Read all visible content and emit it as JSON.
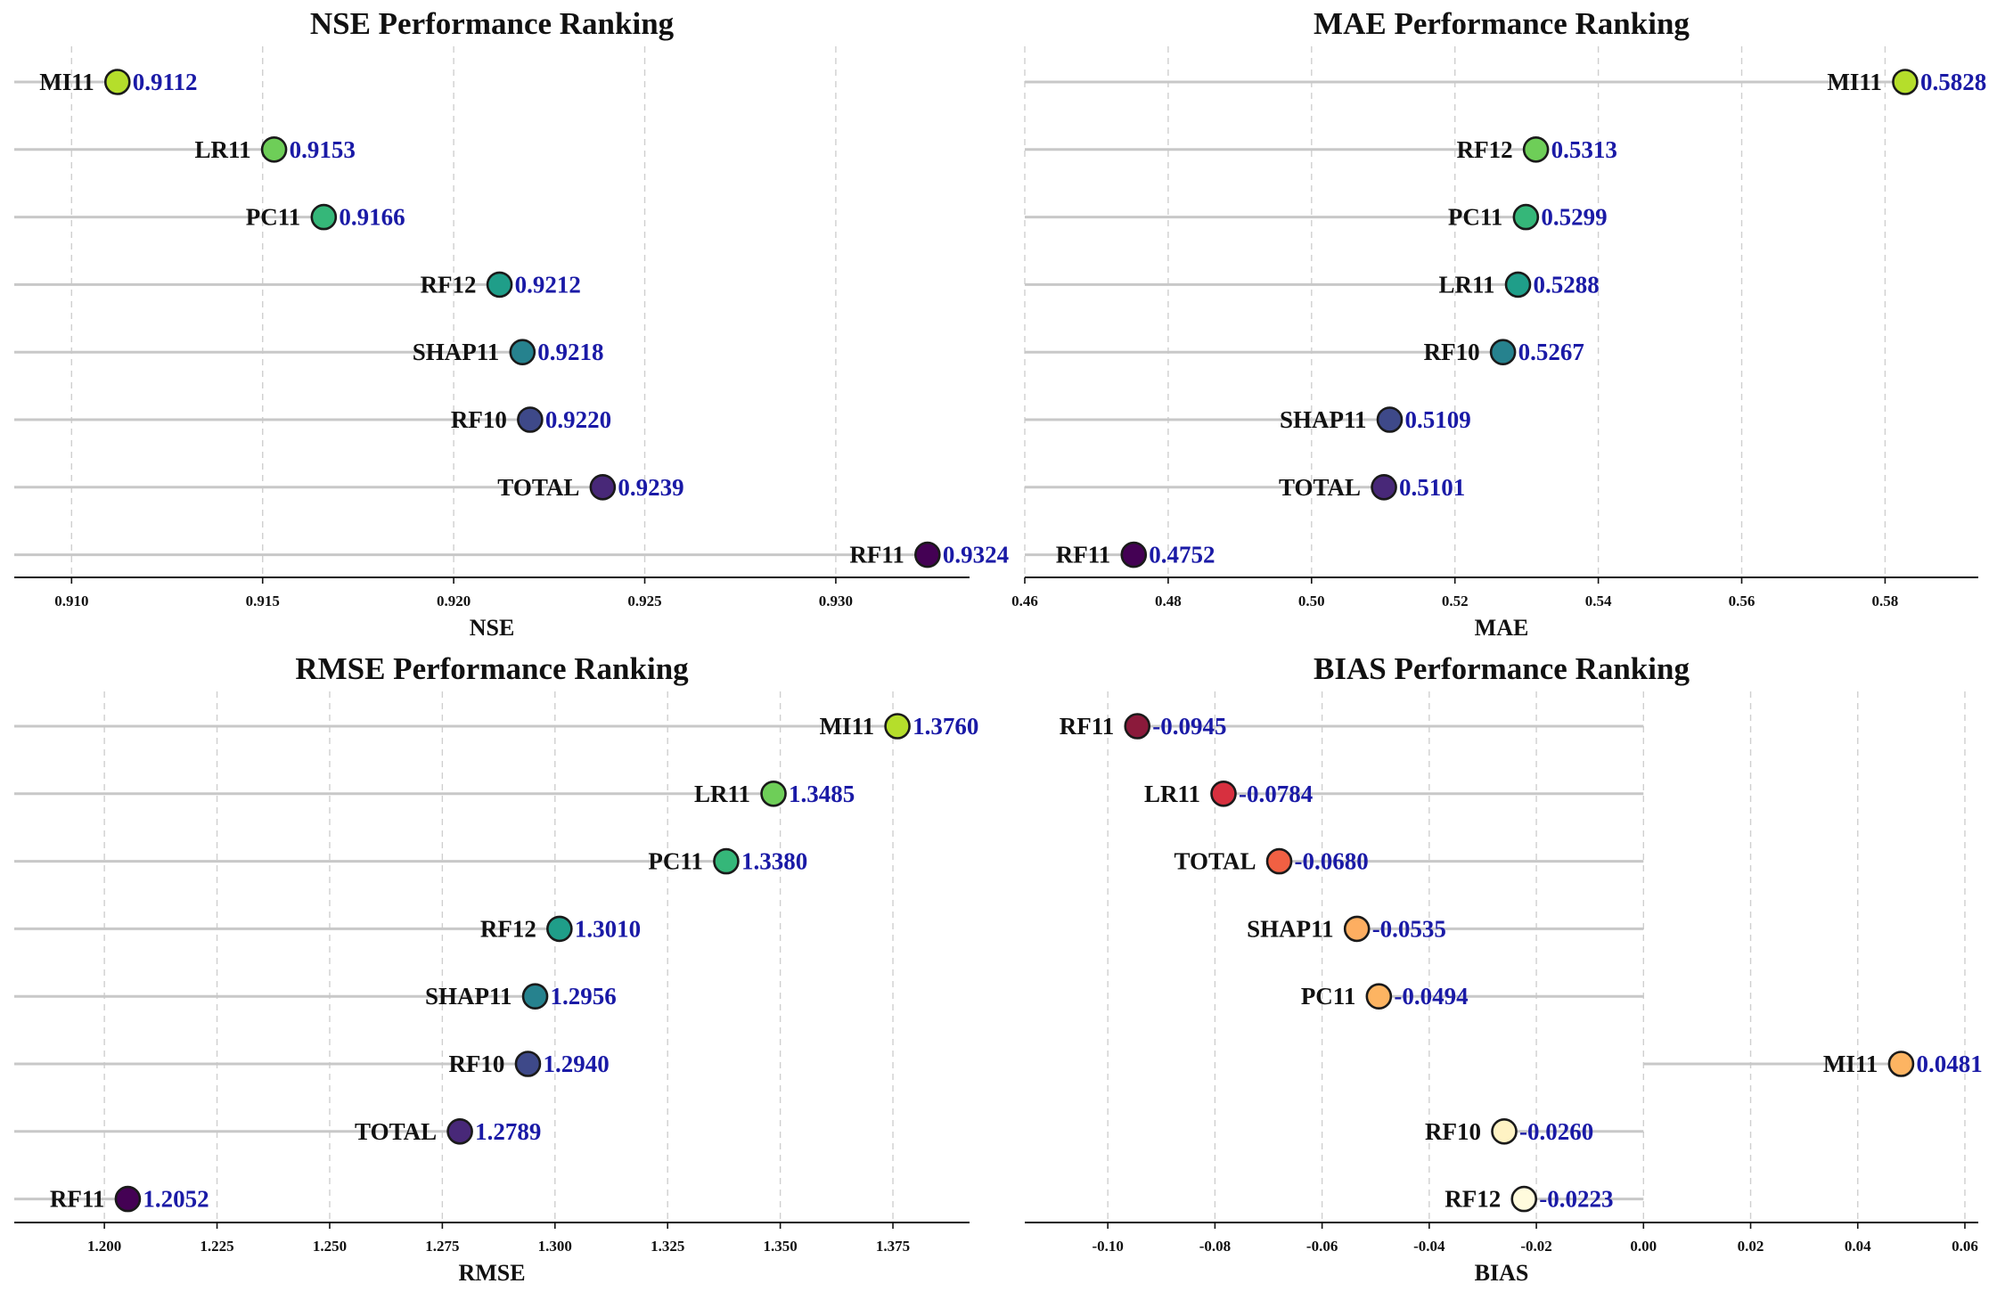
{
  "charts": [
    {
      "id": "nse",
      "type": "lollipop",
      "title": "NSE Performance Ranking",
      "xlabel": "NSE",
      "xlim": [
        0.9085,
        0.9335
      ],
      "ticks": [
        0.91,
        0.915,
        0.92,
        0.925,
        0.93
      ],
      "tick_labels": [
        "0.910",
        "0.915",
        "0.920",
        "0.925",
        "0.930"
      ],
      "baseline": 0.9085,
      "items": [
        {
          "model": "MI11",
          "value": 0.9112,
          "label": "0.9112",
          "color": "#b5de2b"
        },
        {
          "model": "LR11",
          "value": 0.9153,
          "label": "0.9153",
          "color": "#6ece58"
        },
        {
          "model": "PC11",
          "value": 0.9166,
          "label": "0.9166",
          "color": "#35b779"
        },
        {
          "model": "RF12",
          "value": 0.9212,
          "label": "0.9212",
          "color": "#1f9e89"
        },
        {
          "model": "SHAP11",
          "value": 0.9218,
          "label": "0.9218",
          "color": "#26828e"
        },
        {
          "model": "RF10",
          "value": 0.922,
          "label": "0.9220",
          "color": "#3e4989"
        },
        {
          "model": "TOTAL",
          "value": 0.9239,
          "label": "0.9239",
          "color": "#482878"
        },
        {
          "model": "RF11",
          "value": 0.9324,
          "label": "0.9324",
          "color": "#440154"
        }
      ]
    },
    {
      "id": "mae",
      "type": "lollipop",
      "title": "MAE Performance Ranking",
      "xlabel": "MAE",
      "xlim": [
        0.46,
        0.593
      ],
      "ticks": [
        0.46,
        0.48,
        0.5,
        0.52,
        0.54,
        0.56,
        0.58
      ],
      "tick_labels": [
        "0.46",
        "0.48",
        "0.50",
        "0.52",
        "0.54",
        "0.56",
        "0.58"
      ],
      "baseline": 0.46,
      "items": [
        {
          "model": "MI11",
          "value": 0.5828,
          "label": "0.5828",
          "color": "#b5de2b"
        },
        {
          "model": "RF12",
          "value": 0.5313,
          "label": "0.5313",
          "color": "#6ece58"
        },
        {
          "model": "PC11",
          "value": 0.5299,
          "label": "0.5299",
          "color": "#35b779"
        },
        {
          "model": "LR11",
          "value": 0.5288,
          "label": "0.5288",
          "color": "#1f9e89"
        },
        {
          "model": "RF10",
          "value": 0.5267,
          "label": "0.5267",
          "color": "#26828e"
        },
        {
          "model": "SHAP11",
          "value": 0.5109,
          "label": "0.5109",
          "color": "#3e4989"
        },
        {
          "model": "TOTAL",
          "value": 0.5101,
          "label": "0.5101",
          "color": "#482878"
        },
        {
          "model": "RF11",
          "value": 0.4752,
          "label": "0.4752",
          "color": "#440154"
        }
      ]
    },
    {
      "id": "rmse",
      "type": "lollipop",
      "title": "RMSE Performance Ranking",
      "xlabel": "RMSE",
      "xlim": [
        1.18,
        1.392
      ],
      "ticks": [
        1.2,
        1.225,
        1.25,
        1.275,
        1.3,
        1.325,
        1.35,
        1.375
      ],
      "tick_labels": [
        "1.200",
        "1.225",
        "1.250",
        "1.275",
        "1.300",
        "1.325",
        "1.350",
        "1.375"
      ],
      "baseline": 1.18,
      "items": [
        {
          "model": "MI11",
          "value": 1.376,
          "label": "1.3760",
          "color": "#b5de2b"
        },
        {
          "model": "LR11",
          "value": 1.3485,
          "label": "1.3485",
          "color": "#6ece58"
        },
        {
          "model": "PC11",
          "value": 1.338,
          "label": "1.3380",
          "color": "#35b779"
        },
        {
          "model": "RF12",
          "value": 1.301,
          "label": "1.3010",
          "color": "#1f9e89"
        },
        {
          "model": "SHAP11",
          "value": 1.2956,
          "label": "1.2956",
          "color": "#26828e"
        },
        {
          "model": "RF10",
          "value": 1.294,
          "label": "1.2940",
          "color": "#3e4989"
        },
        {
          "model": "TOTAL",
          "value": 1.2789,
          "label": "1.2789",
          "color": "#482878"
        },
        {
          "model": "RF11",
          "value": 1.2052,
          "label": "1.2052",
          "color": "#440154"
        }
      ]
    },
    {
      "id": "bias",
      "type": "lollipop",
      "title": "BIAS Performance Ranking",
      "xlabel": "BIAS",
      "xlim": [
        -0.1155,
        0.0625
      ],
      "ticks": [
        -0.1,
        -0.08,
        -0.06,
        -0.04,
        -0.02,
        0.0,
        0.02,
        0.04,
        0.06
      ],
      "tick_labels": [
        "-0.10",
        "-0.08",
        "-0.06",
        "-0.04",
        "-0.02",
        "0.00",
        "0.02",
        "0.04",
        "0.06"
      ],
      "baseline": 0.0,
      "items": [
        {
          "model": "RF11",
          "value": -0.0945,
          "label": "-0.0945",
          "color": "#8b1a3b"
        },
        {
          "model": "LR11",
          "value": -0.0784,
          "label": "-0.0784",
          "color": "#d7303f"
        },
        {
          "model": "TOTAL",
          "value": -0.068,
          "label": "-0.0680",
          "color": "#f16043"
        },
        {
          "model": "SHAP11",
          "value": -0.0535,
          "label": "-0.0535",
          "color": "#fdae61"
        },
        {
          "model": "PC11",
          "value": -0.0494,
          "label": "-0.0494",
          "color": "#fdb462"
        },
        {
          "model": "MI11",
          "value": 0.0481,
          "label": "0.0481",
          "color": "#fdb462"
        },
        {
          "model": "RF10",
          "value": -0.026,
          "label": "-0.0260",
          "color": "#fff3c4"
        },
        {
          "model": "RF12",
          "value": -0.0223,
          "label": "-0.0223",
          "color": "#fffbdd"
        }
      ]
    }
  ],
  "colors": {
    "value_text": "#1a1aa6",
    "stem": "#c8c8c8",
    "grid": "#cfcfcf",
    "axis": "#111111"
  }
}
